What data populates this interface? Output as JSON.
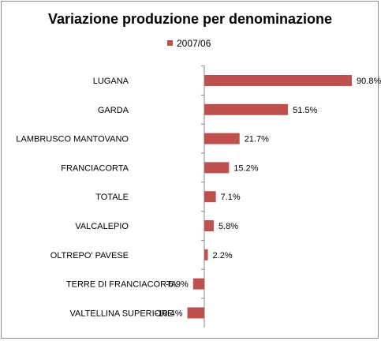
{
  "chart_data": {
    "type": "bar",
    "orientation": "horizontal",
    "title": "Variazione produzione per denominazione",
    "legend_position": "top",
    "categories": [
      "LUGANA",
      "GARDA",
      "LAMBRUSCO MANTOVANO",
      "FRANCIACORTA",
      "TOTALE",
      "VALCALEPIO",
      "OLTREPO' PAVESE",
      "TERRE DI FRANCIACORTA",
      "VALTELLINA SUPERIORE"
    ],
    "series": [
      {
        "name": "2007/06",
        "color": "#C0504D",
        "values": [
          90.8,
          51.5,
          21.7,
          15.2,
          7.1,
          5.8,
          2.2,
          -6.9,
          -10.4
        ]
      }
    ],
    "value_labels": [
      "90.8%",
      "51.5%",
      "21.7%",
      "15.2%",
      "7.1%",
      "5.8%",
      "2.2%",
      "-6.9%",
      "-10.4%"
    ],
    "unit": "%",
    "grid": false
  }
}
